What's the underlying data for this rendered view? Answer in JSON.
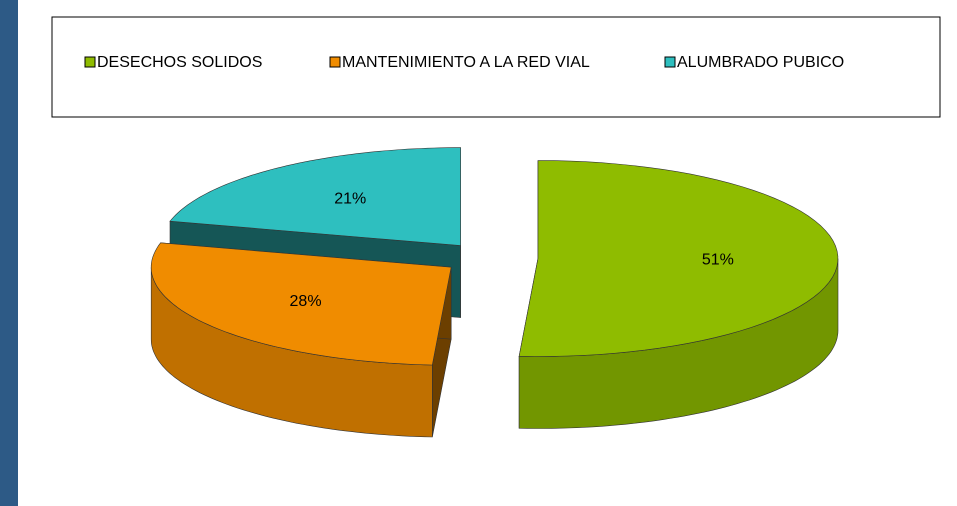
{
  "chart_data": {
    "type": "pie",
    "categories": [
      "DESECHOS SOLIDOS",
      "MANTENIMIENTO A LA RED VIAL",
      "ALUMBRADO PUBICO"
    ],
    "values": [
      51,
      28,
      21
    ],
    "value_labels": [
      "51%",
      "28%",
      "21%"
    ],
    "colors": [
      "#8fbc00",
      "#f08c00",
      "#2ebfbf"
    ],
    "legend": "top"
  }
}
